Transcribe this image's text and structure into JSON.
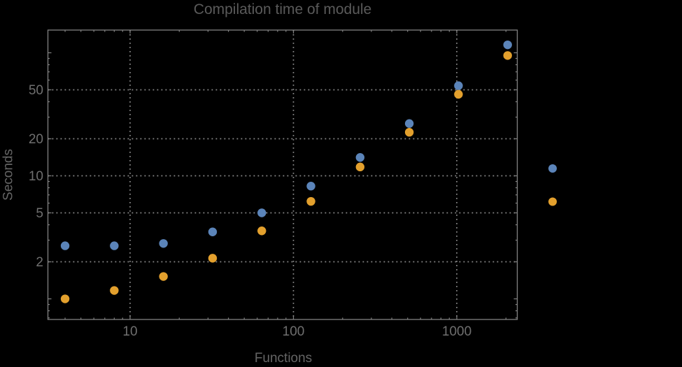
{
  "chart": {
    "title": "Compilation time of module",
    "xlabel": "Functions",
    "ylabel": "Seconds"
  },
  "chart_data": {
    "type": "scatter",
    "title": "Compilation time of module",
    "xlabel": "Functions",
    "ylabel": "Seconds",
    "x_scale": "log",
    "y_scale": "log",
    "xlim": [
      3.14,
      2346
    ],
    "ylim": [
      0.68,
      153
    ],
    "x": [
      4,
      8,
      16,
      32,
      64,
      128,
      256,
      512,
      1024,
      2048
    ],
    "series": [
      {
        "name": "blue",
        "color": "#5b84b9",
        "values": [
          2.7,
          2.7,
          2.82,
          3.5,
          5.0,
          8.25,
          14.1,
          26.6,
          54,
          116
        ]
      },
      {
        "name": "orange",
        "color": "#e3a02d",
        "values": [
          1.0,
          1.17,
          1.52,
          2.14,
          3.57,
          6.2,
          11.8,
          22.6,
          46,
          95
        ]
      }
    ],
    "x_ticks": [
      {
        "value": 10,
        "label": "10"
      },
      {
        "value": 100,
        "label": "100"
      },
      {
        "value": 1000,
        "label": "1000"
      }
    ],
    "y_ticks": [
      {
        "value": 2,
        "label": "2"
      },
      {
        "value": 5,
        "label": "5"
      },
      {
        "value": 10,
        "label": "10"
      },
      {
        "value": 20,
        "label": "20"
      },
      {
        "value": 50,
        "label": "50"
      }
    ],
    "y_major_unlabeled": [
      1,
      100
    ],
    "x_minor_ticks": [
      4,
      5,
      6,
      7,
      8,
      9,
      20,
      30,
      40,
      50,
      60,
      70,
      80,
      90,
      200,
      300,
      400,
      500,
      600,
      700,
      800,
      900,
      2000
    ],
    "y_minor_ticks": [
      0.7,
      0.8,
      0.9,
      3,
      4,
      6,
      7,
      8,
      9,
      30,
      40,
      60,
      70,
      80,
      90
    ],
    "grid": {
      "x_values": [
        10,
        100,
        1000
      ],
      "y_values": [
        2,
        5,
        10,
        20,
        50
      ],
      "style": "dotted"
    },
    "legend": {
      "position": "right-outside",
      "markers": [
        {
          "series": "blue",
          "color": "#5b84b9"
        },
        {
          "series": "orange",
          "color": "#e3a02d"
        }
      ]
    },
    "colors": {
      "background": "#000000",
      "frame": "#828282",
      "grid": "#8c8c8c",
      "title": "#5a5a5a",
      "axis_label": "#656565",
      "tick_label": "#6f6f6f"
    }
  }
}
